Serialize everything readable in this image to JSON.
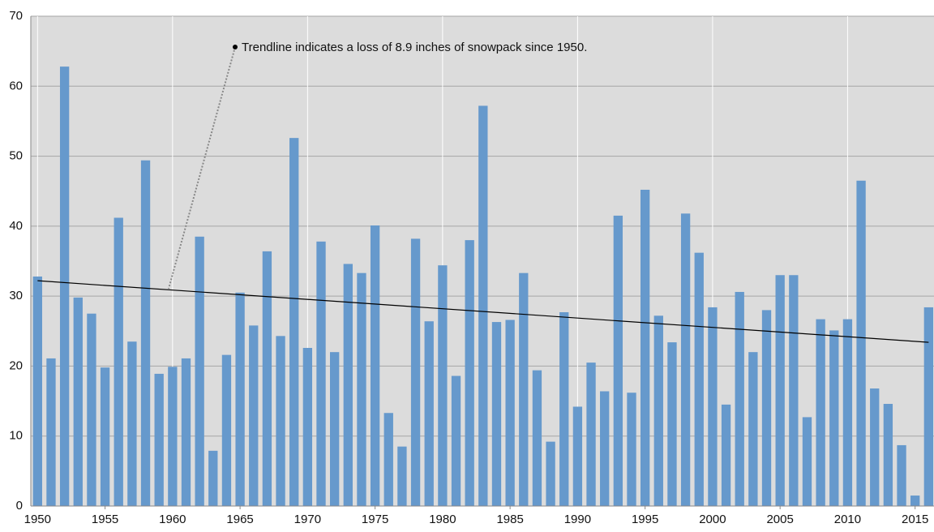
{
  "chart_data": {
    "type": "bar",
    "annotation": "Trendline indicates a loss of 8.9 inches of snowpack since 1950.",
    "x": [
      1950,
      1951,
      1952,
      1953,
      1954,
      1955,
      1956,
      1957,
      1958,
      1959,
      1960,
      1961,
      1962,
      1963,
      1964,
      1965,
      1966,
      1967,
      1968,
      1969,
      1970,
      1971,
      1972,
      1973,
      1974,
      1975,
      1976,
      1977,
      1978,
      1979,
      1980,
      1981,
      1982,
      1983,
      1984,
      1985,
      1986,
      1987,
      1988,
      1989,
      1990,
      1991,
      1992,
      1993,
      1994,
      1995,
      1996,
      1997,
      1998,
      1999,
      2000,
      2001,
      2002,
      2003,
      2004,
      2005,
      2006,
      2007,
      2008,
      2009,
      2010,
      2011,
      2012,
      2013,
      2014,
      2015,
      2016
    ],
    "values": [
      32.8,
      21.1,
      62.8,
      29.8,
      27.5,
      19.8,
      41.2,
      23.5,
      49.4,
      18.9,
      19.9,
      21.1,
      38.5,
      7.9,
      21.6,
      30.5,
      25.8,
      36.4,
      24.3,
      52.6,
      22.6,
      37.8,
      22.0,
      34.6,
      33.3,
      40.1,
      13.3,
      8.5,
      38.2,
      26.4,
      34.4,
      18.6,
      38.0,
      57.2,
      26.3,
      26.6,
      33.3,
      19.4,
      9.2,
      27.7,
      14.2,
      20.5,
      16.4,
      41.5,
      16.2,
      45.2,
      27.2,
      23.4,
      41.8,
      36.2,
      28.4,
      14.5,
      30.6,
      22.0,
      28.0,
      33.0,
      33.0,
      12.7,
      26.7,
      25.1,
      26.7,
      46.5,
      16.8,
      14.6,
      8.7,
      1.5,
      28.4
    ],
    "color": "#6699cc",
    "trendline": {
      "x": [
        1950,
        2016
      ],
      "values": [
        32.2,
        23.4
      ],
      "color": "#000000"
    },
    "xlim": [
      1949.5,
      2016.4
    ],
    "xticks": [
      1950,
      1955,
      1960,
      1965,
      1970,
      1975,
      1980,
      1985,
      1990,
      1995,
      2000,
      2005,
      2010,
      2015
    ],
    "ylim": [
      0,
      70
    ],
    "yticks": [
      0,
      10,
      20,
      30,
      40,
      50,
      60,
      70
    ],
    "grid": true,
    "background": "#dcdcdc"
  }
}
